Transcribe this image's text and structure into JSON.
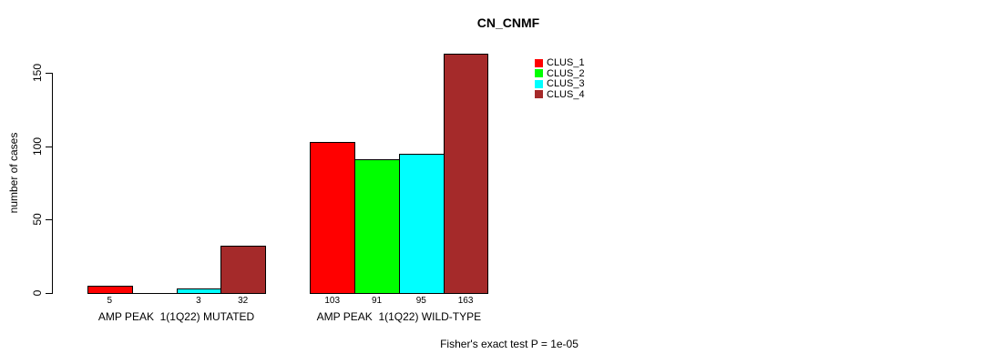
{
  "chart_data": {
    "type": "bar",
    "title": "CN_CNMF",
    "ylabel": "number of cases",
    "yticks": [
      0,
      50,
      100,
      150
    ],
    "ylim": [
      0,
      163
    ],
    "grid": false,
    "legend_position": "top-right-inside",
    "categories": [
      "AMP PEAK  1(1Q22) MUTATED",
      "AMP PEAK  1(1Q22) WILD-TYPE"
    ],
    "series": [
      {
        "name": "CLUS_1",
        "color": "#FF0000",
        "values": [
          5,
          103
        ]
      },
      {
        "name": "CLUS_2",
        "color": "#00FF00",
        "values": [
          0,
          91
        ]
      },
      {
        "name": "CLUS_3",
        "color": "#00FFFF",
        "values": [
          3,
          95
        ]
      },
      {
        "name": "CLUS_4",
        "color": "#A52A2A",
        "values": [
          32,
          163
        ]
      }
    ],
    "bar_value_labels": [
      [
        "5",
        "",
        "3",
        "32"
      ],
      [
        "103",
        "91",
        "95",
        "163"
      ]
    ]
  },
  "footer": {
    "fisher_text": "Fisher's exact test P = 1e-05"
  }
}
